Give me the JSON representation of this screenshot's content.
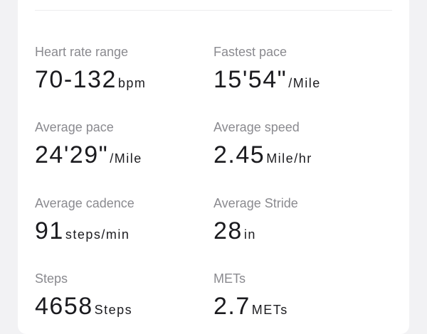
{
  "metrics": [
    {
      "label": "Heart rate range",
      "value": "70-132",
      "unit": "bpm"
    },
    {
      "label": "Fastest pace",
      "value": "15'54\"",
      "unit": "/Mile"
    },
    {
      "label": "Average pace",
      "value": "24'29\"",
      "unit": "/Mile"
    },
    {
      "label": "Average speed",
      "value": "2.45",
      "unit": "Mile/hr"
    },
    {
      "label": "Average cadence",
      "value": "91",
      "unit": "steps/min"
    },
    {
      "label": "Average Stride",
      "value": "28",
      "unit": "in"
    },
    {
      "label": "Steps",
      "value": "4658",
      "unit": "Steps"
    },
    {
      "label": "METs",
      "value": "2.7",
      "unit": "METs"
    }
  ]
}
